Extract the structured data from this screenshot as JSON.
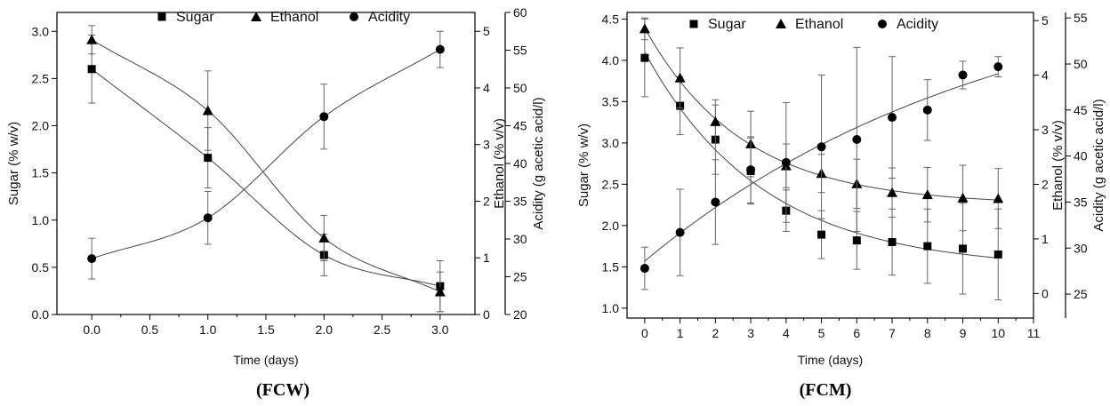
{
  "chart_data": [
    {
      "type": "line",
      "caption": "(FCW)",
      "title": "",
      "xlabel": "Time (days)",
      "ylabel": "Sugar (% w/v)",
      "y2label": "Ethanol (% v/v)",
      "y3label": "Acidity (g acetic acid/l)",
      "xlim": [
        -0.3,
        3.3
      ],
      "xticks": [
        0.0,
        0.5,
        1.0,
        1.5,
        2.0,
        2.5,
        3.0
      ],
      "xtick_labels": [
        "0.0",
        "0.5",
        "1.0",
        "1.5",
        "2.0",
        "2.5",
        "3.0"
      ],
      "ylim": [
        0,
        3.2
      ],
      "yticks": [
        0.0,
        0.5,
        1.0,
        1.5,
        2.0,
        2.5,
        3.0
      ],
      "ytick_labels": [
        "0.0",
        "0.5",
        "1.0",
        "1.5",
        "2.0",
        "2.5",
        "3.0"
      ],
      "y2lim": [
        0,
        5.333
      ],
      "y2ticks": [
        0,
        1,
        2,
        3,
        4,
        5
      ],
      "y2tick_labels": [
        "0",
        "1",
        "2",
        "3",
        "4",
        "5"
      ],
      "y3lim": [
        20,
        60
      ],
      "y3ticks": [
        20,
        25,
        30,
        35,
        40,
        45,
        50,
        55,
        60
      ],
      "y3tick_labels": [
        "20",
        "25",
        "30",
        "35",
        "40",
        "45",
        "50",
        "55",
        "60"
      ],
      "legend": [
        "Sugar",
        "Ethanol",
        "Acidity"
      ],
      "legend_position": "top",
      "x": [
        0,
        1,
        2,
        3
      ],
      "series": [
        {
          "name": "Sugar",
          "marker": "square",
          "axis": "Sugar",
          "values": [
            2.6,
            1.66,
            0.63,
            0.3
          ],
          "errors": [
            0.36,
            0.32,
            0.22,
            0.27
          ],
          "fit": "sigmoid"
        },
        {
          "name": "Ethanol",
          "marker": "triangle",
          "axis": "Ethanol",
          "values": [
            4.85,
            3.6,
            1.35,
            0.4
          ],
          "errors": [
            0.25,
            0.7,
            0.4,
            0.35
          ],
          "fit": "sigmoid"
        },
        {
          "name": "Acidity",
          "marker": "circle",
          "axis": "Acidity",
          "values": [
            27.4,
            32.8,
            46.2,
            55.1
          ],
          "errors": [
            2.7,
            3.5,
            4.3,
            2.4
          ],
          "fit": "sigmoid"
        }
      ]
    },
    {
      "type": "line",
      "caption": "(FCM)",
      "title": "",
      "xlabel": "Time (days)",
      "ylabel": "Sugar (% w/v)",
      "y2label": "Ethanol (% v/v)",
      "y3label": "Acidity (g acetic acid/l)",
      "xlim": [
        -0.5,
        11
      ],
      "xticks": [
        0,
        1,
        2,
        3,
        4,
        5,
        6,
        7,
        8,
        9,
        10,
        11
      ],
      "xtick_labels": [
        "0",
        "1",
        "2",
        "3",
        "4",
        "5",
        "6",
        "7",
        "8",
        "9",
        "10",
        "11"
      ],
      "ylim": [
        0.88,
        4.58
      ],
      "yticks": [
        1.0,
        1.5,
        2.0,
        2.5,
        3.0,
        3.5,
        4.0,
        4.5
      ],
      "ytick_labels": [
        "1.0",
        "1.5",
        "2.0",
        "2.5",
        "3.0",
        "3.5",
        "4.0",
        "4.5"
      ],
      "y2lim": [
        -0.45,
        5.15
      ],
      "y2ticks": [
        0,
        1,
        2,
        3,
        4,
        5
      ],
      "y2tick_labels": [
        "0",
        "1",
        "2",
        "3",
        "4",
        "5"
      ],
      "y3lim": [
        22.4,
        55.6
      ],
      "y3ticks": [
        25,
        30,
        35,
        40,
        45,
        50,
        55
      ],
      "y3tick_labels": [
        "25",
        "30",
        "35",
        "40",
        "45",
        "50",
        "55"
      ],
      "legend": [
        "Sugar",
        "Ethanol",
        "Acidity"
      ],
      "legend_position": "top",
      "x": [
        0,
        1,
        2,
        3,
        4,
        5,
        6,
        7,
        8,
        9,
        10
      ],
      "series": [
        {
          "name": "Sugar",
          "marker": "square",
          "axis": "Sugar",
          "values": [
            4.03,
            3.45,
            3.04,
            2.66,
            2.18,
            1.89,
            1.82,
            1.8,
            1.75,
            1.72,
            1.65
          ],
          "errors": [
            0.47,
            0.35,
            0.42,
            0.4,
            0.25,
            0.29,
            0.35,
            0.4,
            0.45,
            0.55,
            0.55
          ],
          "fit": "exp"
        },
        {
          "name": "Ethanol",
          "marker": "triangle",
          "axis": "Ethanol",
          "values": [
            4.85,
            3.95,
            3.15,
            2.74,
            2.34,
            2.2,
            2.01,
            1.85,
            1.81,
            1.75,
            1.74
          ],
          "errors": [
            0.2,
            0.55,
            0.4,
            0.6,
            0.4,
            0.35,
            0.45,
            0.45,
            0.5,
            0.6,
            0.55
          ],
          "fit": "exp"
        },
        {
          "name": "Acidity",
          "marker": "circle",
          "axis": "Acidity",
          "values": [
            27.8,
            31.7,
            35.0,
            38.5,
            39.3,
            41.0,
            41.8,
            44.2,
            45.0,
            48.8,
            49.7
          ],
          "errors": [
            2.3,
            4.7,
            4.6,
            3.6,
            6.5,
            7.8,
            10.0,
            6.6,
            3.3,
            1.5,
            1.1
          ],
          "fit": "exp"
        }
      ]
    }
  ]
}
